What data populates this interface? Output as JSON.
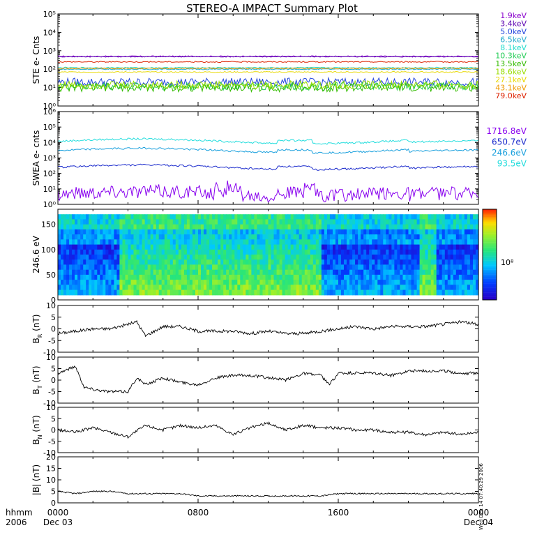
{
  "title": "STEREO-A IMPACT Summary Plot",
  "stamp": "Wed Dec 14 07:40:29 2006",
  "xaxis": {
    "label_top": "hhmm",
    "label_bottom": "2006",
    "ticks": [
      {
        "t": 0,
        "top": "0000",
        "bottom": "Dec 03"
      },
      {
        "t": 8,
        "top": "0800",
        "bottom": ""
      },
      {
        "t": 16,
        "top": "1600",
        "bottom": ""
      },
      {
        "t": 24,
        "top": "0000",
        "bottom": "Dec 04"
      }
    ],
    "range_hours": [
      0,
      24
    ]
  },
  "panels": [
    {
      "id": "ste",
      "ylabel": "STE e- Cnts",
      "scale": "log",
      "ylim": [
        1,
        100000
      ],
      "tick_labels": [
        "10⁰",
        "10¹",
        "10²",
        "10³",
        "10⁴",
        "10⁵"
      ]
    },
    {
      "id": "swea",
      "ylabel": "SWEA e- cnts",
      "scale": "log",
      "ylim": [
        1,
        1000000
      ],
      "tick_labels": [
        "10⁰",
        "10¹",
        "10²",
        "10³",
        "10⁴",
        "10⁵",
        "10⁶"
      ]
    },
    {
      "id": "pad",
      "ylabel": "246.6 eV",
      "scale": "linear",
      "ylim": [
        0,
        180
      ],
      "tick_labels": [
        "0",
        "50",
        "100",
        "150"
      ]
    },
    {
      "id": "br",
      "ylabel": "B",
      "ylabel_sub": "R",
      "ylabel_unit": "(nT)",
      "scale": "linear",
      "ylim": [
        -10,
        10
      ],
      "tick_labels": [
        "-10",
        "-5",
        "0",
        "5",
        "10"
      ]
    },
    {
      "id": "bt",
      "ylabel": "B",
      "ylabel_sub": "T",
      "ylabel_unit": "(nT)",
      "scale": "linear",
      "ylim": [
        -10,
        10
      ],
      "tick_labels": [
        "-10",
        "-5",
        "0",
        "5",
        "10"
      ]
    },
    {
      "id": "bn",
      "ylabel": "B",
      "ylabel_sub": "N",
      "ylabel_unit": "(nT)",
      "scale": "linear",
      "ylim": [
        -10,
        10
      ],
      "tick_labels": [
        "-10",
        "-5",
        "0",
        "5",
        "10"
      ]
    },
    {
      "id": "bmag",
      "ylabel": "|B|",
      "ylabel_unit": "(nT)",
      "scale": "linear",
      "ylim": [
        0,
        20
      ],
      "tick_labels": [
        "0",
        "5",
        "10",
        "15",
        "20"
      ]
    }
  ],
  "chart_data": [
    {
      "type": "line",
      "panel": "ste",
      "title": "STE e- Cnts",
      "series": [
        {
          "name": "1.9keV",
          "color": "#8800cc",
          "value": 500
        },
        {
          "name": "3.4keV",
          "color": "#5a00b0",
          "value": 480
        },
        {
          "name": "5.0keV",
          "color": "#2244dd",
          "value": 20
        },
        {
          "name": "6.5keV",
          "color": "#22aacc",
          "value": 100
        },
        {
          "name": "8.1keV",
          "color": "#22ddcc",
          "value": 120
        },
        {
          "name": "10.3keV",
          "color": "#22cc55",
          "value": 12
        },
        {
          "name": "13.5keV",
          "color": "#33bb00",
          "value": 10
        },
        {
          "name": "18.6keV",
          "color": "#99dd00",
          "value": 14
        },
        {
          "name": "27.1keV",
          "color": "#e8d800",
          "value": 70
        },
        {
          "name": "43.1keV",
          "color": "#ee9900",
          "value": 110
        },
        {
          "name": "79.0keV",
          "color": "#dd2200",
          "value": 250
        }
      ]
    },
    {
      "type": "line",
      "panel": "swea",
      "title": "SWEA e- cnts",
      "series": [
        {
          "name": "1716.8eV",
          "color": "#8800ee",
          "value": 5
        },
        {
          "name": "650.7eV",
          "color": "#1a2acc",
          "value": 250
        },
        {
          "name": "246.6eV",
          "color": "#1aa0dd",
          "value": 3000
        },
        {
          "name": "93.5eV",
          "color": "#22dddd",
          "value": 12000
        }
      ]
    },
    {
      "type": "heatmap",
      "panel": "pad",
      "title": "246.6 eV",
      "ylim": [
        0,
        180
      ],
      "colorbar_label": "10⁸"
    },
    {
      "type": "line",
      "panel": "br",
      "ylim": [
        -10,
        10
      ],
      "x": [
        0,
        1,
        2,
        3,
        4,
        4.5,
        5,
        5.5,
        6,
        7,
        8,
        9,
        10,
        11,
        12,
        13,
        14,
        15,
        16,
        17,
        18,
        19,
        20,
        21,
        22,
        23,
        24
      ],
      "y": [
        -2,
        -1,
        0,
        0,
        2,
        3,
        -3,
        -1,
        1,
        1,
        -1,
        -1,
        -1,
        -2,
        -1,
        -2,
        -2,
        -1,
        0,
        1,
        0,
        1,
        1,
        1,
        2,
        3,
        2
      ]
    },
    {
      "type": "line",
      "panel": "bt",
      "ylim": [
        -10,
        10
      ],
      "x": [
        0,
        1,
        1.5,
        2,
        3,
        4,
        4.5,
        5,
        6,
        7,
        8,
        9,
        10,
        11,
        12,
        13,
        14,
        15,
        15.5,
        16,
        17,
        18,
        19,
        20,
        21,
        22,
        23,
        24
      ],
      "y": [
        3,
        6,
        -3,
        -4,
        -5,
        -5,
        1,
        -2,
        1,
        -1,
        -2,
        1,
        2,
        2,
        1,
        0,
        3,
        2,
        -2,
        3,
        3,
        3,
        2,
        4,
        4,
        4,
        3,
        3
      ]
    },
    {
      "type": "line",
      "panel": "bn",
      "ylim": [
        -10,
        10
      ],
      "x": [
        0,
        1,
        2,
        3,
        4,
        5,
        6,
        7,
        8,
        9,
        10,
        11,
        12,
        13,
        14,
        15,
        16,
        17,
        18,
        19,
        20,
        21,
        22,
        23,
        24
      ],
      "y": [
        0,
        -1,
        1,
        -1,
        -3,
        2,
        0,
        2,
        1,
        2,
        -2,
        1,
        3,
        0,
        2,
        1,
        1,
        0,
        0,
        -1,
        -1,
        -2,
        -1,
        -2,
        -1
      ]
    },
    {
      "type": "line",
      "panel": "bmag",
      "ylim": [
        0,
        20
      ],
      "x": [
        0,
        1,
        2,
        3,
        4,
        5,
        6,
        7,
        8,
        9,
        10,
        11,
        12,
        13,
        14,
        15,
        16,
        17,
        18,
        19,
        20,
        21,
        22,
        23,
        24
      ],
      "y": [
        5,
        4,
        5,
        5,
        4,
        4,
        4,
        4,
        3,
        3,
        3,
        3,
        3,
        3,
        3,
        3,
        4,
        4,
        4,
        4,
        4,
        4,
        4,
        4,
        4
      ]
    }
  ]
}
